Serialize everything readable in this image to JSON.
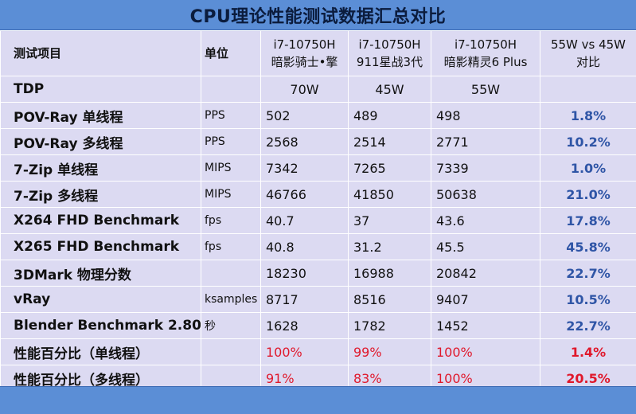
{
  "title": "CPU理论性能测试数据汇总对比",
  "header": {
    "item": "测试项目",
    "unit": "单位",
    "cols": [
      {
        "line1": "i7-10750H",
        "line2": "暗影骑士•擎"
      },
      {
        "line1": "i7-10750H",
        "line2": "911星战3代"
      },
      {
        "line1": "i7-10750H",
        "line2": "暗影精灵6 Plus"
      },
      {
        "line1": "55W vs 45W",
        "line2": "对比"
      }
    ]
  },
  "tdp": {
    "label": "TDP",
    "values": [
      "70W",
      "45W",
      "55W"
    ]
  },
  "rows": [
    {
      "name": "POV-Ray 单线程",
      "unit": "PPS",
      "v1": "502",
      "v2": "489",
      "v3": "498",
      "ratio": "1.8%"
    },
    {
      "name": "POV-Ray 多线程",
      "unit": "PPS",
      "v1": "2568",
      "v2": "2514",
      "v3": "2771",
      "ratio": "10.2%"
    },
    {
      "name": "7-Zip 单线程",
      "unit": "MIPS",
      "v1": "7342",
      "v2": "7265",
      "v3": "7339",
      "ratio": "1.0%"
    },
    {
      "name": "7-Zip 多线程",
      "unit": "MIPS",
      "v1": "46766",
      "v2": "41850",
      "v3": "50638",
      "ratio": "21.0%"
    },
    {
      "name": "X264 FHD Benchmark",
      "unit": "fps",
      "v1": "40.7",
      "v2": "37",
      "v3": "43.6",
      "ratio": "17.8%"
    },
    {
      "name": "X265 FHD Benchmark",
      "unit": "fps",
      "v1": "40.8",
      "v2": "31.2",
      "v3": "45.5",
      "ratio": "45.8%"
    },
    {
      "name": "3DMark 物理分数",
      "unit": "",
      "v1": "18230",
      "v2": "16988",
      "v3": "20842",
      "ratio": "22.7%"
    },
    {
      "name": "vRay",
      "unit": "ksamples",
      "v1": "8717",
      "v2": "8516",
      "v3": "9407",
      "ratio": "10.5%"
    },
    {
      "name": "Blender Benchmark 2.80",
      "unit": "秒",
      "v1": "1628",
      "v2": "1782",
      "v3": "1452",
      "ratio": "22.7%"
    },
    {
      "name": "性能百分比（单线程）",
      "unit": "",
      "v1": "100%",
      "v2": "99%",
      "v3": "100%",
      "ratio": "1.4%"
    },
    {
      "name": "性能百分比（多线程）",
      "unit": "",
      "v1": "91%",
      "v2": "83%",
      "v3": "100%",
      "ratio": "20.5%"
    }
  ],
  "colors": {
    "bar": "#5b8ed6",
    "cell": "#dcdaf2",
    "ratio_blue": "#2f55a6",
    "highlight_red": "#e0182b"
  }
}
